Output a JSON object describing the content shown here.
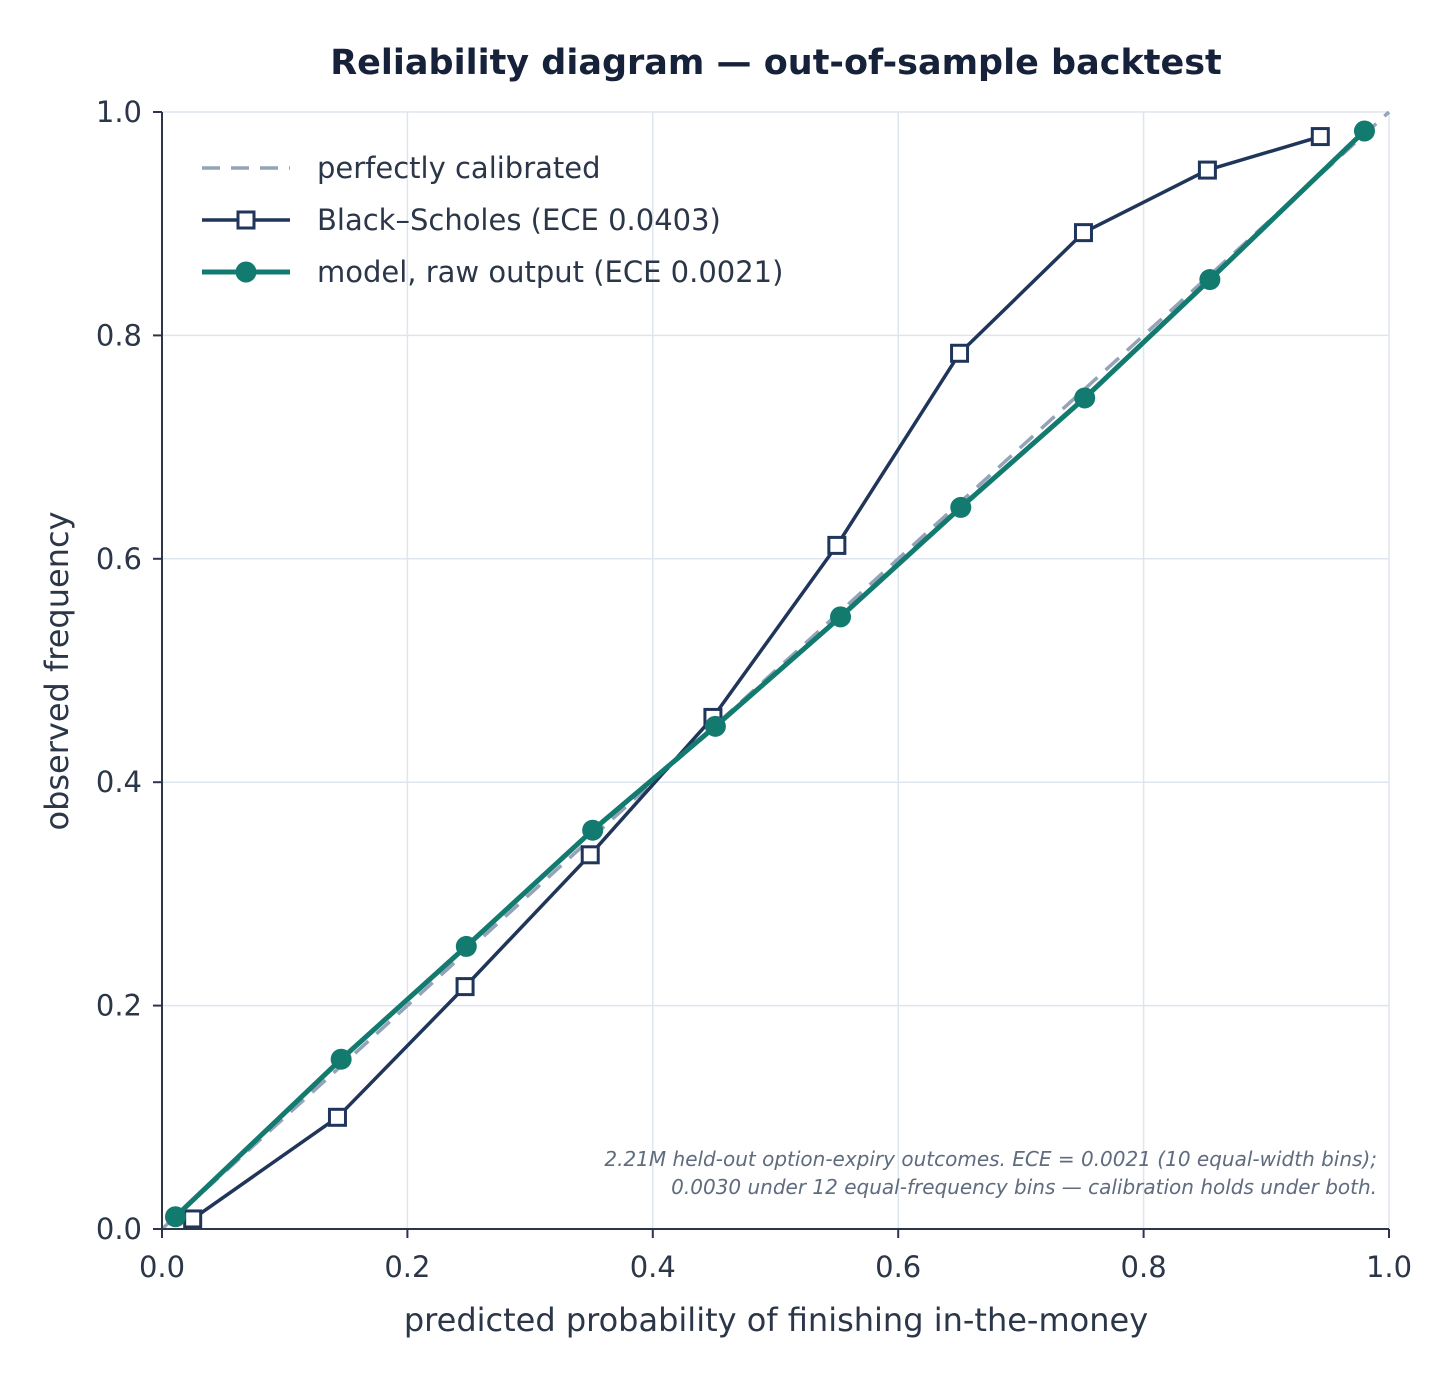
{
  "chart_data": {
    "type": "line",
    "title": "Reliability diagram — out-of-sample backtest",
    "xlabel": "predicted probability of finishing in-the-money",
    "ylabel": "observed frequency",
    "xlim": [
      0.0,
      1.0
    ],
    "ylim": [
      0.0,
      1.0
    ],
    "xticks": [
      "0.0",
      "0.2",
      "0.4",
      "0.6",
      "0.8",
      "1.0"
    ],
    "yticks": [
      "0.0",
      "0.2",
      "0.4",
      "0.6",
      "0.8",
      "1.0"
    ],
    "grid": true,
    "legend_position": "top-left",
    "series": [
      {
        "name": "perfectly calibrated",
        "style": "dashed",
        "color": "#94a3b8",
        "x": [
          0.0,
          1.0
        ],
        "y": [
          0.0,
          1.0
        ]
      },
      {
        "name": "Black–Scholes  (ECE 0.0403)",
        "style": "line-square-open",
        "color": "#1f355a",
        "x": [
          0.025,
          0.143,
          0.247,
          0.349,
          0.449,
          0.55,
          0.65,
          0.751,
          0.852,
          0.944
        ],
        "y": [
          0.009,
          0.1,
          0.217,
          0.335,
          0.458,
          0.612,
          0.784,
          0.892,
          0.948,
          0.978
        ]
      },
      {
        "name": "model, raw output  (ECE 0.0021)",
        "style": "line-circle-filled",
        "color": "#127a6e",
        "x": [
          0.011,
          0.146,
          0.248,
          0.351,
          0.451,
          0.553,
          0.651,
          0.752,
          0.854,
          0.98
        ],
        "y": [
          0.011,
          0.152,
          0.253,
          0.357,
          0.45,
          0.548,
          0.646,
          0.744,
          0.85,
          0.983
        ]
      }
    ],
    "annotations": [
      "2.21M held-out option-expiry outcomes.  ECE = 0.0021 (10 equal-width bins);",
      "0.0030 under 12 equal-frequency bins — calibration holds under both."
    ]
  }
}
